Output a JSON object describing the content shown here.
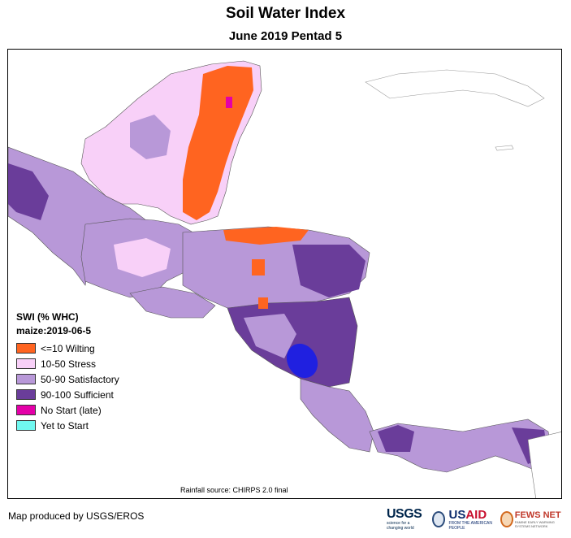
{
  "title": "Soil Water Index",
  "subtitle": "June 2019 Pentad 5",
  "legend": {
    "title": "SWI (% WHC)",
    "subtitle": "maize:2019-06-5",
    "items": [
      {
        "label": "<=10 Wilting",
        "color": "#ff6420"
      },
      {
        "label": "10-50 Stress",
        "color": "#f8d0f8"
      },
      {
        "label": "50-90 Satisfactory",
        "color": "#b898d8"
      },
      {
        "label": "90-100 Sufficient",
        "color": "#6a3d9a"
      },
      {
        "label": "No Start (late)",
        "color": "#e400a8"
      },
      {
        "label": "Yet to Start",
        "color": "#70f8f0"
      }
    ]
  },
  "source": "Rainfall source: CHIRPS 2.0 final",
  "credit": "Map produced by USGS/EROS",
  "logos": {
    "usgs": "USGS",
    "usgs_tagline": "science for a changing world",
    "usaid_a": "US",
    "usaid_b": "AID",
    "usaid_tagline": "FROM THE AMERICAN PEOPLE",
    "fews": "FEWS NET",
    "fews_tagline": "FAMINE EARLY WARNING SYSTEMS NETWORK"
  },
  "colors": {
    "water": "#2020e0",
    "border": "#555555"
  }
}
